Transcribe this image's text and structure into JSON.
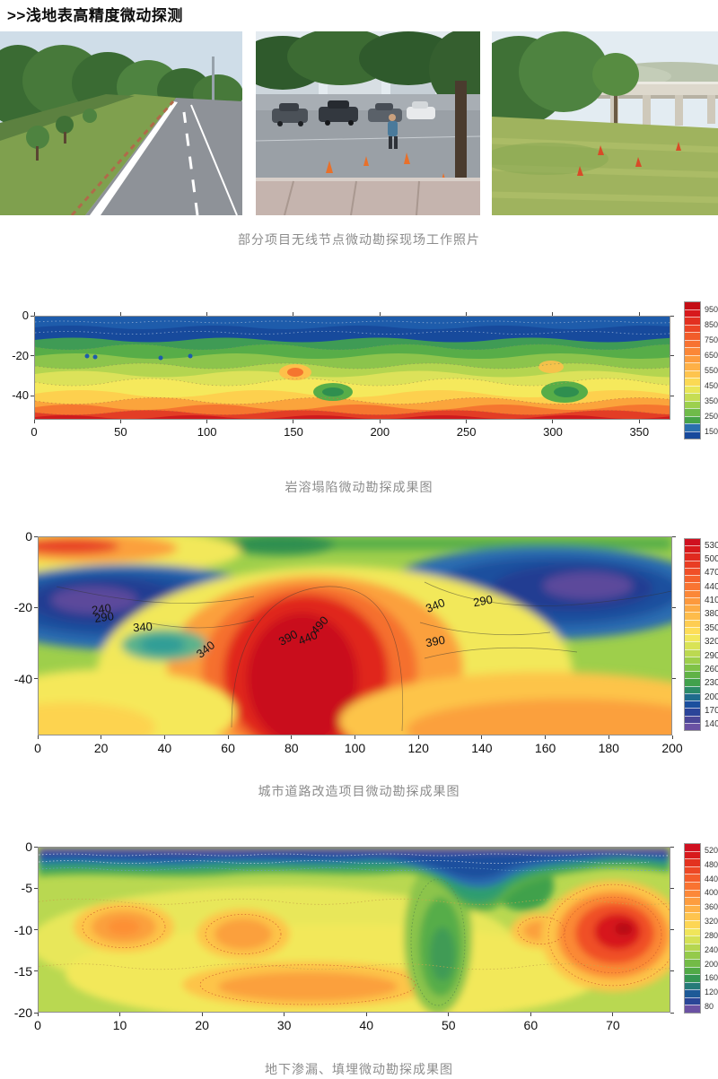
{
  "title": ">>浅地表高精度微动探测",
  "photos": {
    "caption": "部分项目无线节点微动勘探现场工作照片"
  },
  "chart_data": [
    {
      "type": "heatmap",
      "title": "岩溶塌陷微动勘探成果图",
      "xlabel": "",
      "ylabel": "",
      "x_ticks": [
        0,
        50,
        100,
        150,
        200,
        250,
        300,
        350
      ],
      "xlim": [
        0,
        368
      ],
      "y_ticks": [
        0,
        -20,
        -40
      ],
      "ylim": [
        -52,
        0
      ],
      "top_ticks": true,
      "grid": false,
      "legend_position": "right",
      "colorbar": {
        "labels": [
          950,
          850,
          750,
          650,
          550,
          450,
          350,
          250,
          150
        ],
        "colors": [
          "#c40d15",
          "#d7191c",
          "#e23020",
          "#ec4525",
          "#f25c2a",
          "#f77231",
          "#fb8737",
          "#fd9c3e",
          "#feb046",
          "#fec44e",
          "#fbd954",
          "#e9e658",
          "#c6dd53",
          "#9cd04d",
          "#6fbb49",
          "#45a348",
          "#2a6fae",
          "#17499c"
        ]
      }
    },
    {
      "type": "heatmap",
      "title": "城市道路改造项目微动勘探成果图",
      "xlabel": "",
      "ylabel": "",
      "x_ticks": [
        0,
        20,
        40,
        60,
        80,
        100,
        120,
        140,
        160,
        180,
        200
      ],
      "xlim": [
        0,
        200
      ],
      "y_ticks": [
        0,
        -20,
        -40
      ],
      "ylim": [
        -56,
        0
      ],
      "top_ticks": false,
      "grid": false,
      "legend_position": "right",
      "colorbar": {
        "labels": [
          530,
          500,
          470,
          440,
          410,
          380,
          350,
          320,
          290,
          260,
          230,
          200,
          170,
          140
        ],
        "colors": [
          "#cf1020",
          "#d7191c",
          "#e02a1f",
          "#e93d23",
          "#f04f27",
          "#f5622c",
          "#f97432",
          "#fb8737",
          "#fd993d",
          "#fdab44",
          "#febc4b",
          "#fecd52",
          "#fedd58",
          "#f2e75b",
          "#d9e356",
          "#bcd951",
          "#9ecf4b",
          "#7fc247",
          "#60b246",
          "#41a14c",
          "#2b8a68",
          "#1f6b8d",
          "#1b4f9e",
          "#2b4499",
          "#4b4697",
          "#6a51a3"
        ]
      },
      "contour_labels": [
        {
          "text": "240",
          "x_pct": 10.1,
          "y_pct": 36.4,
          "rot": -8
        },
        {
          "text": "290",
          "x_pct": 10.5,
          "y_pct": 40.5,
          "rot": -8
        },
        {
          "text": "340",
          "x_pct": 16.5,
          "y_pct": 45.5,
          "rot": -4
        },
        {
          "text": "340",
          "x_pct": 26.4,
          "y_pct": 56.8,
          "rot": -38
        },
        {
          "text": "390",
          "x_pct": 39.4,
          "y_pct": 50.9,
          "rot": -28
        },
        {
          "text": "440",
          "x_pct": 42.6,
          "y_pct": 50.9,
          "rot": -22
        },
        {
          "text": "490",
          "x_pct": 44.4,
          "y_pct": 44.5,
          "rot": -48
        },
        {
          "text": "340",
          "x_pct": 62.6,
          "y_pct": 34.5,
          "rot": -22
        },
        {
          "text": "290",
          "x_pct": 70.1,
          "y_pct": 32.3,
          "rot": -10
        },
        {
          "text": "390",
          "x_pct": 62.7,
          "y_pct": 52.7,
          "rot": -10
        }
      ]
    },
    {
      "type": "heatmap",
      "title": "地下渗漏、填埋微动勘探成果图",
      "xlabel": "",
      "ylabel": "",
      "x_ticks": [
        0,
        10,
        20,
        30,
        40,
        50,
        60,
        70
      ],
      "xlim": [
        0,
        77
      ],
      "y_ticks": [
        0,
        -5,
        -10,
        -15,
        -20
      ],
      "ylim": [
        -20,
        0
      ],
      "top_ticks": false,
      "grid": false,
      "legend_position": "right",
      "colorbar": {
        "labels": [
          520,
          480,
          440,
          400,
          360,
          320,
          280,
          240,
          200,
          160,
          120,
          80
        ],
        "colors": [
          "#cf1020",
          "#d7191c",
          "#e3321f",
          "#ed4825",
          "#f45d2b",
          "#f97331",
          "#fc8838",
          "#fd9d3f",
          "#feb147",
          "#fec44e",
          "#fdd654",
          "#f0e55a",
          "#d5e155",
          "#b5d650",
          "#94ca4a",
          "#73bb46",
          "#51aa46",
          "#349653",
          "#257a78",
          "#1d5a97",
          "#2a4697",
          "#6a51a3"
        ]
      }
    }
  ]
}
